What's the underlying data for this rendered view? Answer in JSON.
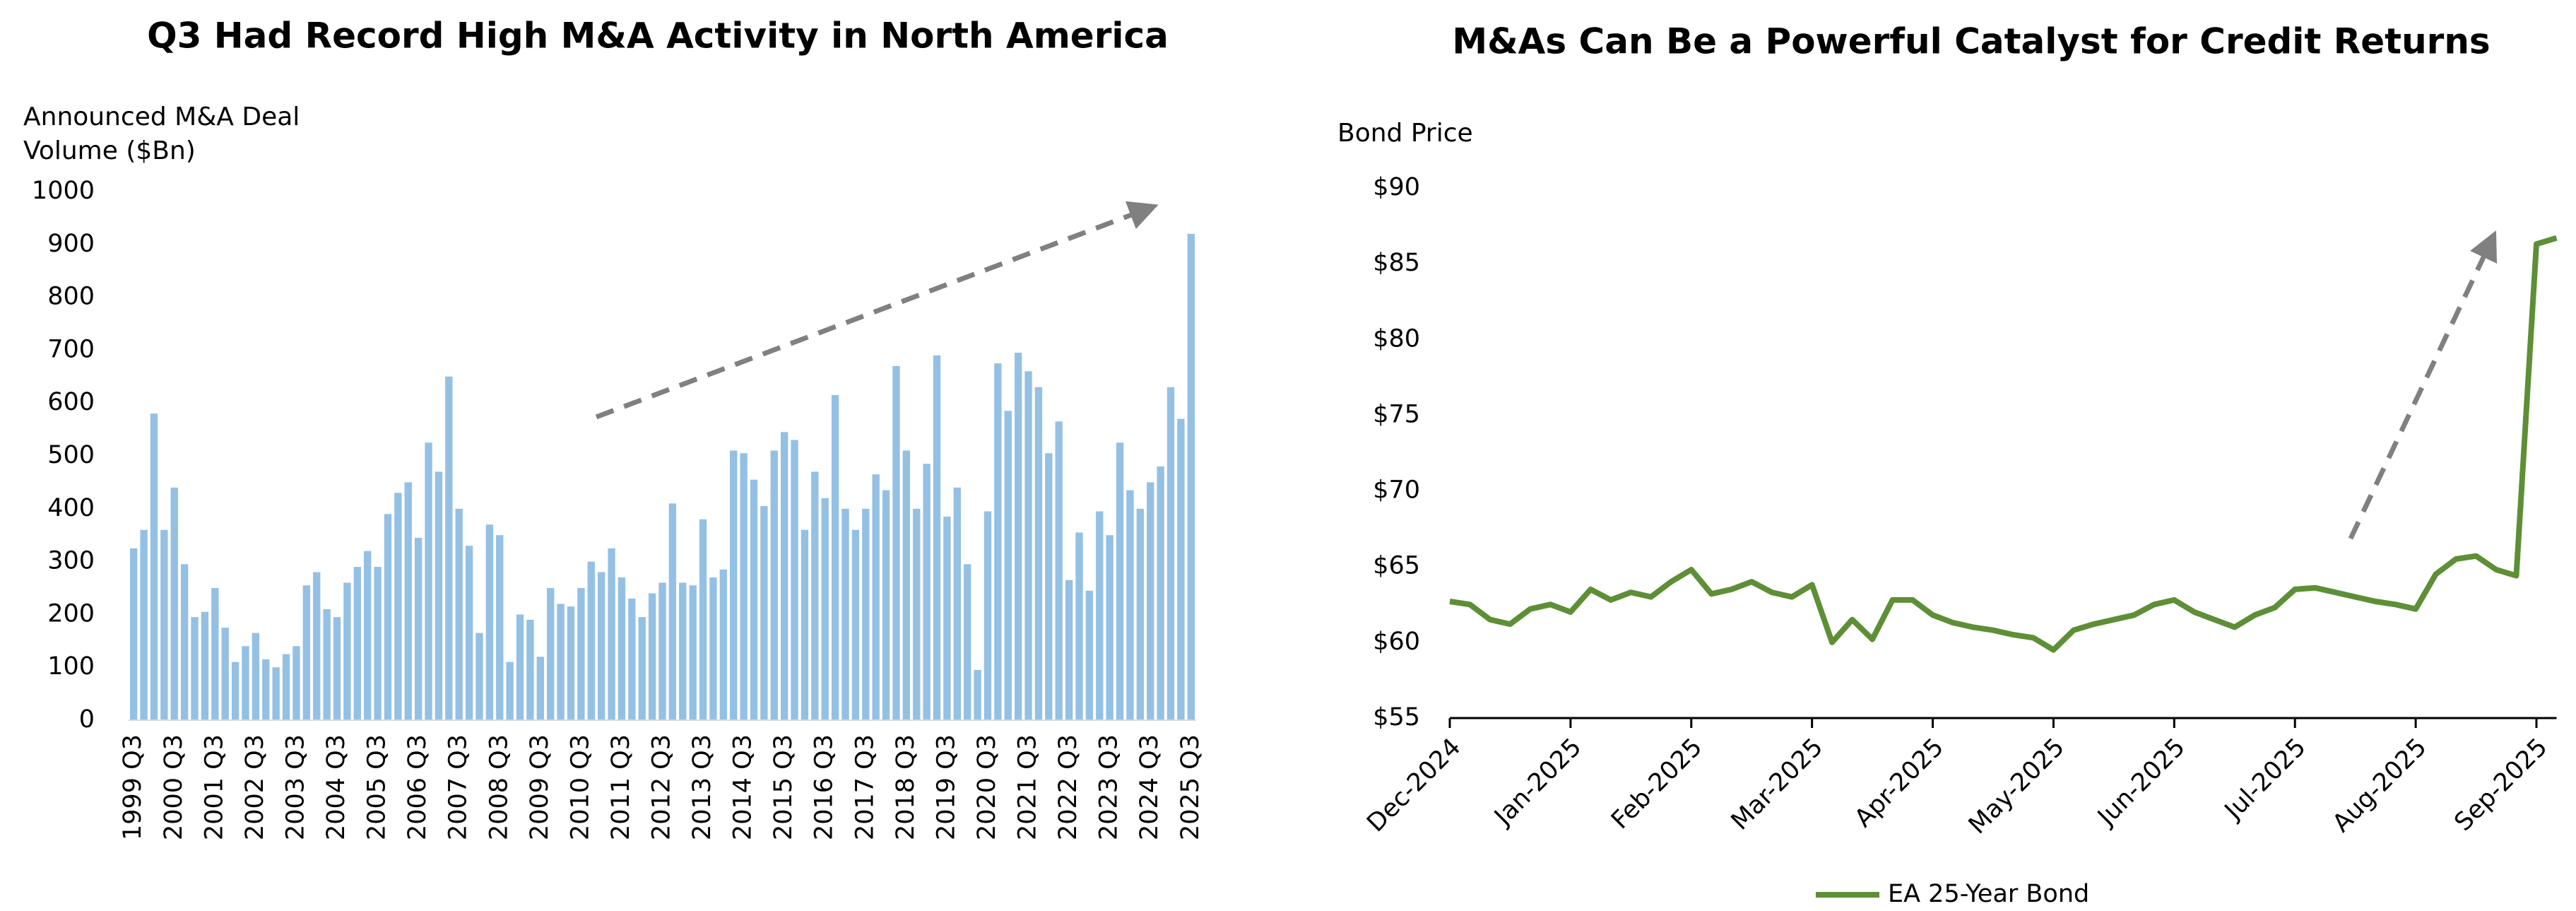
{
  "chart_data": [
    {
      "type": "bar",
      "title": "Q3 Had Record High M&A Activity in North America",
      "y_label": "Announced M&A Deal Volume ($Bn)",
      "categories": [
        "1999 Q3",
        null,
        null,
        null,
        "2000 Q3",
        null,
        null,
        null,
        "2001 Q3",
        null,
        null,
        null,
        "2002 Q3",
        null,
        null,
        null,
        "2003 Q3",
        null,
        null,
        null,
        "2004 Q3",
        null,
        null,
        null,
        "2005 Q3",
        null,
        null,
        null,
        "2006 Q3",
        null,
        null,
        null,
        "2007 Q3",
        null,
        null,
        null,
        "2008 Q3",
        null,
        null,
        null,
        "2009 Q3",
        null,
        null,
        null,
        "2010 Q3",
        null,
        null,
        null,
        "2011 Q3",
        null,
        null,
        null,
        "2012 Q3",
        null,
        null,
        null,
        "2013 Q3",
        null,
        null,
        null,
        "2014 Q3",
        null,
        null,
        null,
        "2015 Q3",
        null,
        null,
        null,
        "2016 Q3",
        null,
        null,
        null,
        "2017 Q3",
        null,
        null,
        null,
        "2018 Q3",
        null,
        null,
        null,
        "2019 Q3",
        null,
        null,
        null,
        "2020 Q3",
        null,
        null,
        null,
        "2021 Q3",
        null,
        null,
        null,
        "2022 Q3",
        null,
        null,
        null,
        "2023 Q3",
        null,
        null,
        null,
        "2024 Q3",
        null,
        null,
        null,
        "2025 Q3"
      ],
      "values": [
        325,
        360,
        580,
        360,
        440,
        295,
        195,
        205,
        250,
        175,
        110,
        140,
        165,
        115,
        100,
        125,
        140,
        255,
        280,
        210,
        195,
        260,
        290,
        320,
        290,
        390,
        430,
        450,
        345,
        525,
        470,
        650,
        400,
        330,
        165,
        370,
        350,
        110,
        200,
        190,
        120,
        250,
        220,
        215,
        250,
        300,
        280,
        325,
        270,
        230,
        195,
        240,
        260,
        410,
        260,
        255,
        380,
        270,
        285,
        510,
        505,
        455,
        405,
        510,
        545,
        530,
        360,
        470,
        420,
        615,
        400,
        360,
        400,
        465,
        435,
        670,
        510,
        400,
        485,
        690,
        385,
        440,
        295,
        95,
        395,
        675,
        585,
        695,
        660,
        630,
        505,
        565,
        265,
        355,
        245,
        395,
        350,
        525,
        435,
        400,
        450,
        480,
        630,
        570,
        920
      ],
      "color": "#94c0e4",
      "ylim": [
        0,
        1000
      ],
      "yticks": [
        0,
        100,
        200,
        300,
        400,
        500,
        600,
        700,
        800,
        900,
        1000
      ],
      "grid": false
    },
    {
      "type": "line",
      "title": "M&As Can Be a Powerful Catalyst for Credit Returns",
      "y_label": "Bond Price",
      "categories": [
        "Dec-2024",
        null,
        null,
        null,
        null,
        null,
        "Jan-2025",
        null,
        null,
        null,
        null,
        null,
        "Feb-2025",
        null,
        null,
        null,
        null,
        null,
        "Mar-2025",
        null,
        null,
        null,
        null,
        null,
        "Apr-2025",
        null,
        null,
        null,
        null,
        null,
        "May-2025",
        null,
        null,
        null,
        null,
        null,
        "Jun-2025",
        null,
        null,
        null,
        null,
        null,
        "Jul-2025",
        null,
        null,
        null,
        null,
        null,
        "Aug-2025",
        null,
        null,
        null,
        null,
        null,
        "Sep-2025",
        null
      ],
      "series": [
        {
          "name": "EA 25-Year Bond",
          "color": "#5e8f37",
          "values": [
            62.7,
            62.5,
            61.5,
            61.2,
            62.2,
            62.5,
            62.0,
            63.5,
            62.8,
            63.3,
            63.0,
            64.0,
            64.8,
            63.2,
            63.5,
            64.0,
            63.3,
            63.0,
            63.8,
            60.0,
            61.5,
            60.2,
            62.8,
            62.8,
            61.8,
            61.3,
            61.0,
            60.8,
            60.5,
            60.3,
            59.5,
            60.8,
            61.2,
            61.5,
            61.8,
            62.5,
            62.8,
            62.0,
            61.5,
            61.0,
            61.8,
            62.3,
            63.5,
            63.6,
            63.3,
            63.0,
            62.7,
            62.5,
            62.2,
            64.5,
            65.5,
            65.7,
            64.8,
            64.4,
            86.3,
            86.7
          ]
        }
      ],
      "ylim": [
        55,
        90
      ],
      "yticks": [
        {
          "value": 55,
          "label": "$55"
        },
        {
          "value": 60,
          "label": "$60"
        },
        {
          "value": 65,
          "label": "$65"
        },
        {
          "value": 70,
          "label": "$70"
        },
        {
          "value": 75,
          "label": "$75"
        },
        {
          "value": 80,
          "label": "$80"
        },
        {
          "value": 85,
          "label": "$85"
        },
        {
          "value": 90,
          "label": "$90"
        }
      ],
      "legend": "bottom",
      "grid": false
    }
  ]
}
